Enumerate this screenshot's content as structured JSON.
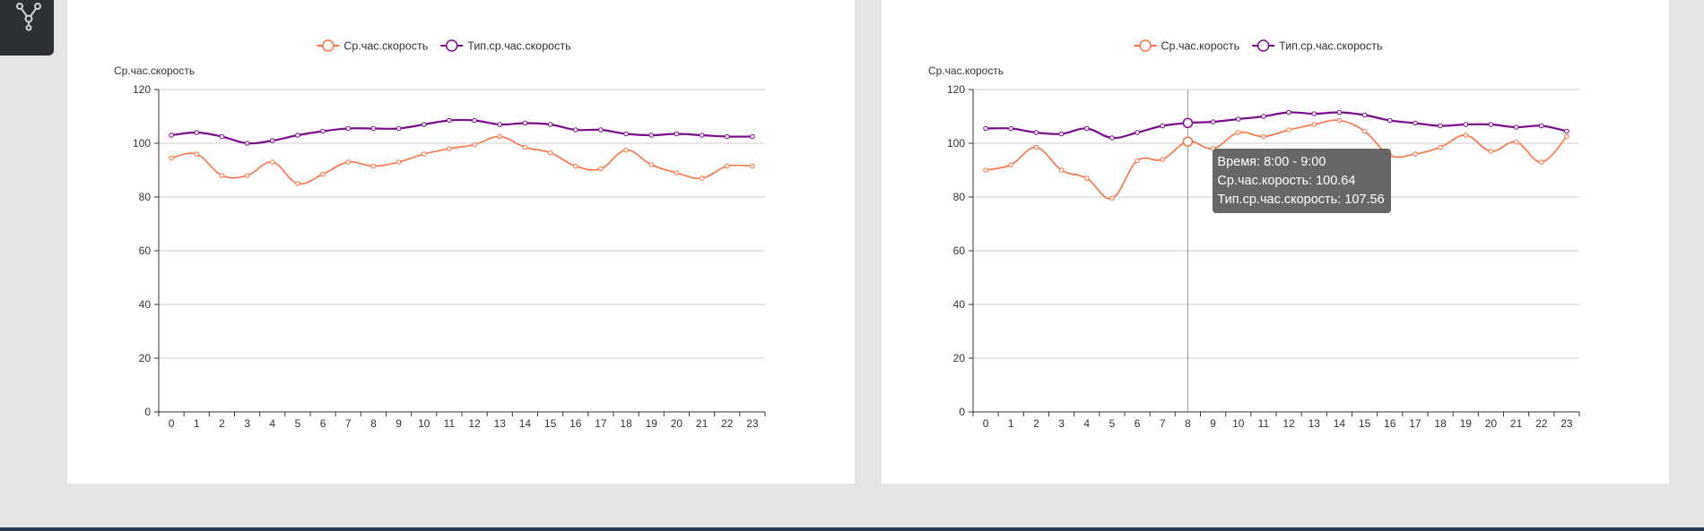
{
  "toolbar": {
    "icon": "graph-nodes-icon"
  },
  "colors": {
    "series1": "#ff7043",
    "series2": "#7b0c8e",
    "axis": "#333333",
    "grid": "#cccccc"
  },
  "chart_data": [
    {
      "type": "line",
      "legend_position": "top-center",
      "ylabel": "Ср.час.скорость",
      "xlabel": "",
      "x": [
        0,
        1,
        2,
        3,
        4,
        5,
        6,
        7,
        8,
        9,
        10,
        11,
        12,
        13,
        14,
        15,
        16,
        17,
        18,
        19,
        20,
        21,
        22,
        23
      ],
      "ylim": [
        0,
        120
      ],
      "yticks": [
        0,
        20,
        40,
        60,
        80,
        100,
        120
      ],
      "grid": true,
      "smooth": true,
      "series": [
        {
          "name": "Ср.час.скорость",
          "color": "#ff7043",
          "values": [
            94.5,
            96,
            88,
            88,
            93,
            85,
            88.5,
            93,
            91.5,
            93,
            96,
            98,
            99.5,
            102.5,
            98.5,
            96.5,
            91.5,
            90.5,
            97.5,
            92,
            89,
            87,
            91.5,
            91.5
          ]
        },
        {
          "name": "Тип.ср.час.скорость",
          "color": "#7b0c8e",
          "values": [
            103,
            104,
            102.5,
            100,
            101,
            103,
            104.5,
            105.5,
            105.5,
            105.5,
            107,
            108.5,
            108.5,
            107,
            107.5,
            107,
            105,
            105,
            103.5,
            103,
            103.5,
            103,
            102.5,
            102.5
          ]
        }
      ]
    },
    {
      "type": "line",
      "legend_position": "top-center",
      "ylabel": "Ср.час.корость",
      "xlabel": "",
      "x": [
        0,
        1,
        2,
        3,
        4,
        5,
        6,
        7,
        8,
        9,
        10,
        11,
        12,
        13,
        14,
        15,
        16,
        17,
        18,
        19,
        20,
        21,
        22,
        23
      ],
      "ylim": [
        0,
        120
      ],
      "yticks": [
        0,
        20,
        40,
        60,
        80,
        100,
        120
      ],
      "grid": true,
      "smooth": true,
      "series": [
        {
          "name": "Ср.час.корость",
          "color": "#ff7043",
          "values": [
            90,
            92,
            98.5,
            90,
            87,
            79.5,
            93.5,
            94,
            100.64,
            98,
            104,
            102.5,
            105,
            107,
            108.5,
            104.5,
            95.5,
            96,
            98.5,
            103,
            97,
            100.5,
            93,
            102.5
          ]
        },
        {
          "name": "Тип.ср.час.скорость",
          "color": "#7b0c8e",
          "values": [
            105.5,
            105.5,
            104,
            103.5,
            105.5,
            102,
            104,
            106.5,
            107.56,
            108,
            109,
            110,
            111.5,
            111,
            111.5,
            110.5,
            108.5,
            107.5,
            106.5,
            107,
            107,
            106,
            106.5,
            104.5
          ]
        }
      ],
      "tooltip": {
        "x_index": 8,
        "line1": "Время: 8:00 - 9:00",
        "line2": "Ср.час.корость: 100.64",
        "line3": "Тип.ср.час.скорость: 107.56"
      }
    }
  ]
}
